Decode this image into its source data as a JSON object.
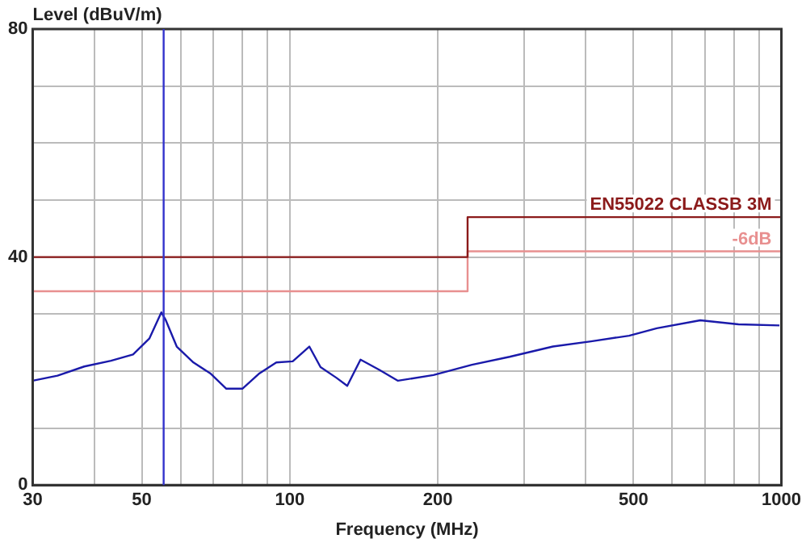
{
  "chart_data": {
    "type": "line",
    "ylabel": "Level (dBuV/m)",
    "xlabel": "Frequency (MHz)",
    "log": "x",
    "xlim": [
      30,
      1000
    ],
    "xticks": [
      30,
      {
        "value": 40,
        "label": null
      },
      50,
      {
        "value": 60,
        "label": null
      },
      {
        "value": 70,
        "label": null
      },
      {
        "value": 80,
        "label": null
      },
      {
        "value": 90,
        "label": null
      },
      100,
      200,
      {
        "value": 300,
        "label": null
      },
      {
        "value": 400,
        "label": null
      },
      500,
      {
        "value": 600,
        "label": null
      },
      {
        "value": 700,
        "label": null
      },
      {
        "value": 800,
        "label": null
      },
      {
        "value": 900,
        "label": null
      },
      1000
    ],
    "ylim": [
      0,
      80
    ],
    "yticks": [
      0,
      {
        "value": 10,
        "label": null
      },
      {
        "value": 20,
        "label": null
      },
      {
        "value": 30,
        "label": null
      },
      40,
      {
        "value": 50,
        "label": null
      },
      {
        "value": 60,
        "label": null
      },
      {
        "value": 70,
        "label": null
      },
      80
    ],
    "grid": true,
    "legend": false,
    "marker": "none",
    "line_style": "solid",
    "ref_lines": [
      {
        "axis": "x",
        "value": 55.4,
        "color": "#3333cc"
      }
    ],
    "series": [
      {
        "type": "step",
        "name": "EN55022 CLASSB 3M",
        "color": "#8b1a1a",
        "x": [
          30,
          230,
          1000
        ],
        "values": [
          40,
          47,
          47
        ]
      },
      {
        "type": "step",
        "name": "-6dB",
        "color": "#e89090",
        "x": [
          30,
          230,
          1000
        ],
        "values": [
          34,
          41,
          41
        ]
      },
      {
        "type": "line",
        "color": "#1a1aaa",
        "x": [
          30,
          33.7,
          38.2,
          43.3,
          48.0,
          51.8,
          54.8,
          55.9,
          58.9,
          63.7,
          68.9,
          74.3,
          80.1,
          86.8,
          93.9,
          101.4,
          109.6,
          115.5,
          124.5,
          130.9,
          139.3,
          152.2,
          166,
          196,
          234.7,
          280,
          343,
          410,
          490,
          558,
          684,
          818,
          991
        ],
        "values": [
          18.3,
          19.2,
          20.8,
          21.8,
          22.9,
          25.7,
          30.3,
          29,
          24.3,
          21.5,
          19.6,
          16.9,
          16.9,
          19.6,
          21.5,
          21.7,
          24.3,
          20.7,
          18.8,
          17.4,
          22,
          20.2,
          18.3,
          19.3,
          21.1,
          22.5,
          24.3,
          25.2,
          26.2,
          27.5,
          28.9,
          28.2,
          28
        ]
      }
    ]
  }
}
